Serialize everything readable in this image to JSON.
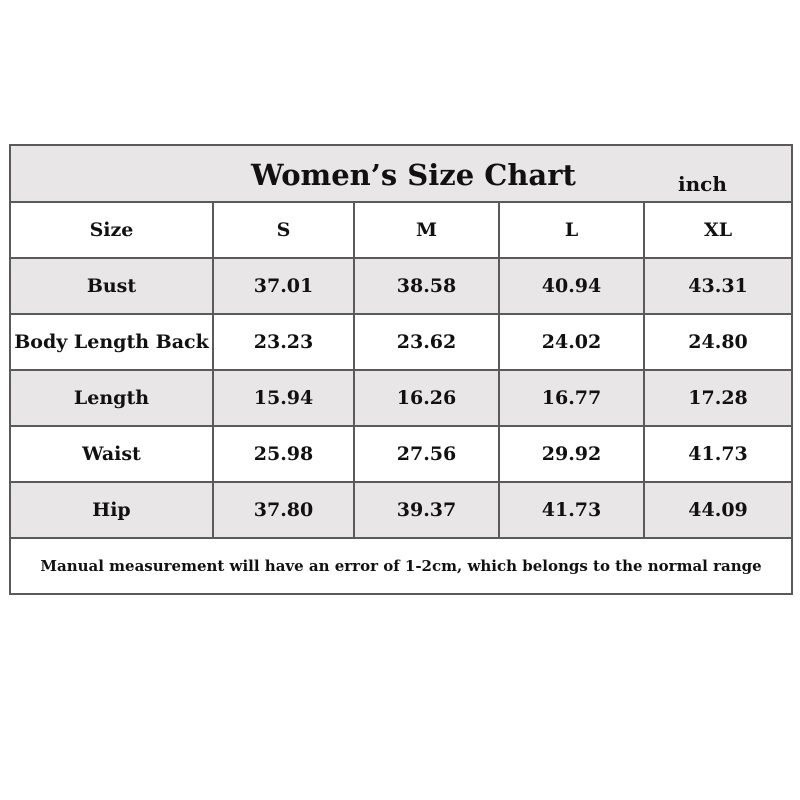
{
  "title": "Women’s Size Chart",
  "unit": "inch",
  "header": {
    "label": "Size",
    "sizes": [
      "S",
      "M",
      "L",
      "XL"
    ]
  },
  "rows": [
    {
      "label": "Bust",
      "values": [
        "37.01",
        "38.58",
        "40.94",
        "43.31"
      ]
    },
    {
      "label": "Body Length Back",
      "values": [
        "23.23",
        "23.62",
        "24.02",
        "24.80"
      ]
    },
    {
      "label": "Length",
      "values": [
        "15.94",
        "16.26",
        "16.77",
        "17.28"
      ]
    },
    {
      "label": "Waist",
      "values": [
        "25.98",
        "27.56",
        "29.92",
        "41.73"
      ]
    },
    {
      "label": "Hip",
      "values": [
        "37.80",
        "39.37",
        "41.73",
        "44.09"
      ]
    }
  ],
  "note": "Manual measurement will have an error of 1-2cm, which belongs to the normal range",
  "colors": {
    "shaded_row": "#e8e6e6",
    "border": "#5a5a5a"
  }
}
